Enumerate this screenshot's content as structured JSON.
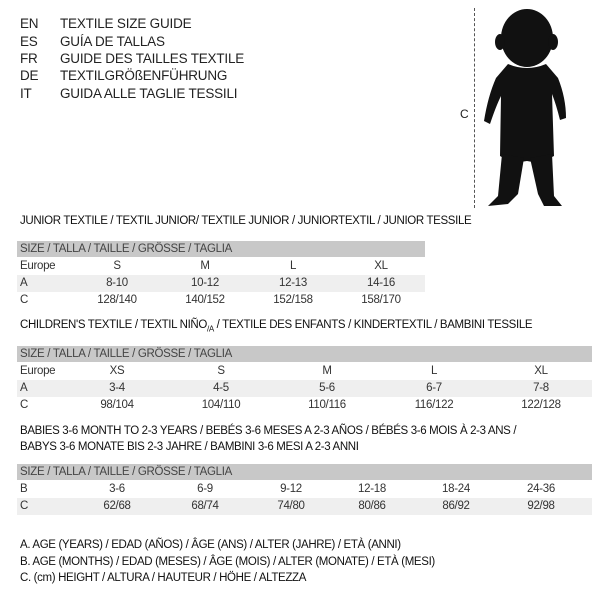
{
  "header": {
    "languages": [
      {
        "code": "EN",
        "text": "TEXTILE SIZE GUIDE"
      },
      {
        "code": "ES",
        "text": "GUÍA DE TALLAS"
      },
      {
        "code": "FR",
        "text": "GUIDE DES TAILLES TEXTILE"
      },
      {
        "code": "DE",
        "text": "TEXTILGRÖßENFÜHRUNG"
      },
      {
        "code": "IT",
        "text": "GUIDA ALLE TAGLIE TESSILI"
      }
    ]
  },
  "figure": {
    "measure_label": "C",
    "icon": "baby-silhouette-icon"
  },
  "junior": {
    "title": "JUNIOR TEXTILE / TEXTIL JUNIOR/ TEXTILE JUNIOR / JUNIORTEXTIL / JUNIOR TESSILE",
    "header": "SIZE / TALLA / TAILLE / GRÖSSE / TAGLIA",
    "rows": [
      {
        "label": "Europe",
        "cells": [
          "S",
          "M",
          "L",
          "XL"
        ]
      },
      {
        "label": "A",
        "cells": [
          "8-10",
          "10-12",
          "12-13",
          "14-16"
        ]
      },
      {
        "label": "C",
        "cells": [
          "128/140",
          "140/152",
          "152/158",
          "158/170"
        ]
      }
    ]
  },
  "children": {
    "title": "CHILDREN'S TEXTILE / TEXTIL NIÑO",
    "title_sub": "/A",
    "title_rest": " / TEXTILE DES ENFANTS / KINDERTEXTIL / BAMBINI TESSILE",
    "header": "SIZE / TALLA / TAILLE / GRÖSSE / TAGLIA",
    "rows": [
      {
        "label": "Europe",
        "cells": [
          "XS",
          "S",
          "M",
          "L",
          "XL"
        ]
      },
      {
        "label": "A",
        "cells": [
          "3-4",
          "4-5",
          "5-6",
          "6-7",
          "7-8"
        ]
      },
      {
        "label": "C",
        "cells": [
          "98/104",
          "104/110",
          "110/116",
          "116/122",
          "122/128"
        ]
      }
    ]
  },
  "babies": {
    "title_line1": "BABIES 3-6 MONTH TO 2-3 YEARS / BEBÉS 3-6 MESES A 2-3 AÑOS / BÉBÉS 3-6 MOIS À 2-3 ANS /",
    "title_line2": "BABYS 3-6 MONATE BIS 2-3 JAHRE / BAMBINI 3-6 MESI A 2-3 ANNI",
    "header": "SIZE / TALLA / TAILLE / GRÖSSE / TAGLIA",
    "rows": [
      {
        "label": "B",
        "cells": [
          "3-6",
          "6-9",
          "9-12",
          "12-18",
          "18-24",
          "24-36"
        ]
      },
      {
        "label": "C",
        "cells": [
          "62/68",
          "68/74",
          "74/80",
          "80/86",
          "86/92",
          "92/98"
        ]
      }
    ]
  },
  "legend": [
    "A. AGE (YEARS) / EDAD (AÑOS) / ÂGE (ANS) / ALTER (JAHRE) / ETÀ (ANNI)",
    "B. AGE (MONTHS) / EDAD (MESES) / ÂGE (MOIS) / ALTER (MONATE) / ETÀ (MESI)",
    "C. (cm) HEIGHT / ALTURA / HAUTEUR / HÖHE / ALTEZZA"
  ]
}
